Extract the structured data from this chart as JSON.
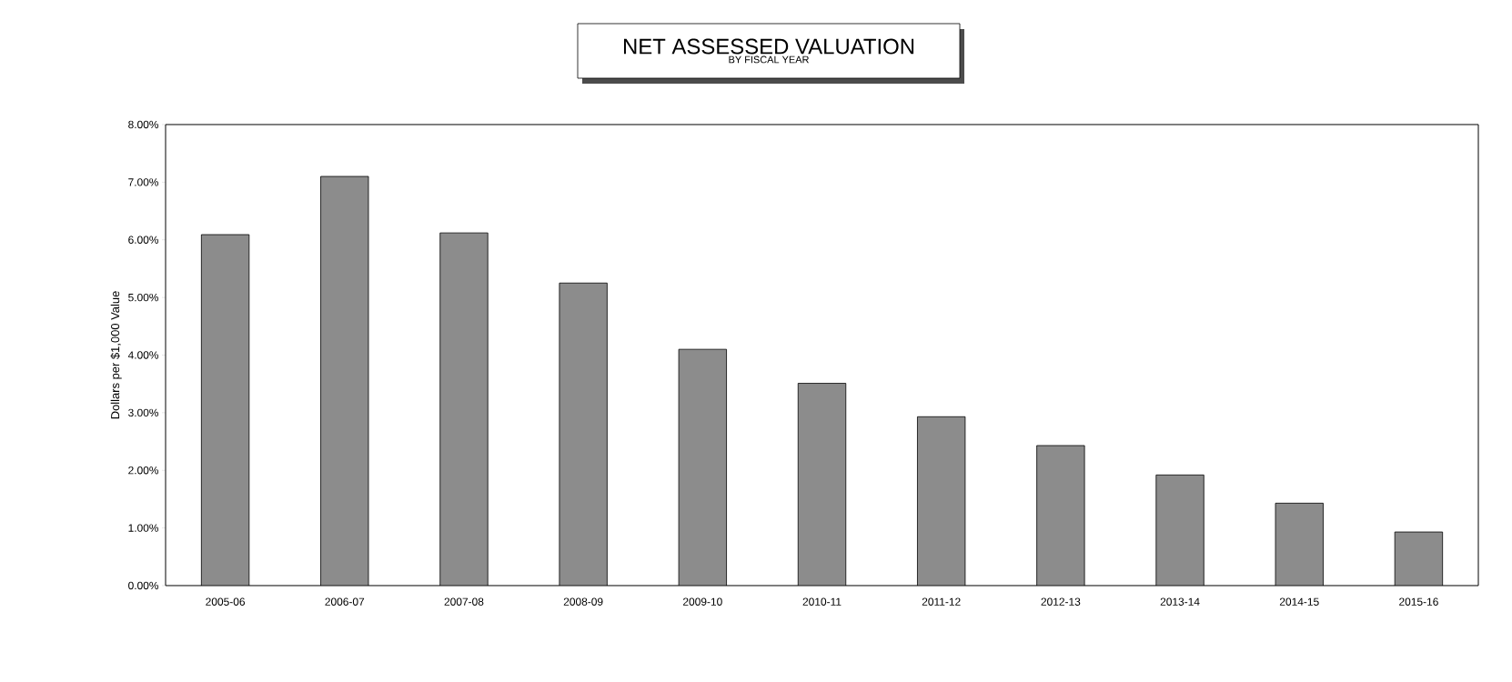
{
  "chart_data": {
    "type": "bar",
    "title": "NET ASSESSED VALUATION",
    "subtitle": "BY FISCAL YEAR",
    "ylabel": "Dollars per $1,000 Value",
    "categories": [
      "2005-06",
      "2006-07",
      "2007-08",
      "2008-09",
      "2009-10",
      "2010-11",
      "2011-12",
      "2012-13",
      "2013-14",
      "2014-15",
      "2015-16"
    ],
    "values": [
      6.09,
      7.1,
      6.12,
      5.25,
      4.1,
      3.51,
      2.93,
      2.43,
      1.92,
      1.43,
      0.93
    ],
    "color": "#8c8c8c",
    "ylim": [
      0,
      8
    ],
    "yticks": [
      {
        "value": 0,
        "label": "0.00%"
      },
      {
        "value": 1,
        "label": "1.00%"
      },
      {
        "value": 2,
        "label": "2.00%"
      },
      {
        "value": 3,
        "label": "3.00%"
      },
      {
        "value": 4,
        "label": "4.00%"
      },
      {
        "value": 5,
        "label": "5.00%"
      },
      {
        "value": 6,
        "label": "6.00%"
      },
      {
        "value": 7,
        "label": "7.00%"
      },
      {
        "value": 8,
        "label": "8.00%"
      }
    ],
    "grid": false
  }
}
